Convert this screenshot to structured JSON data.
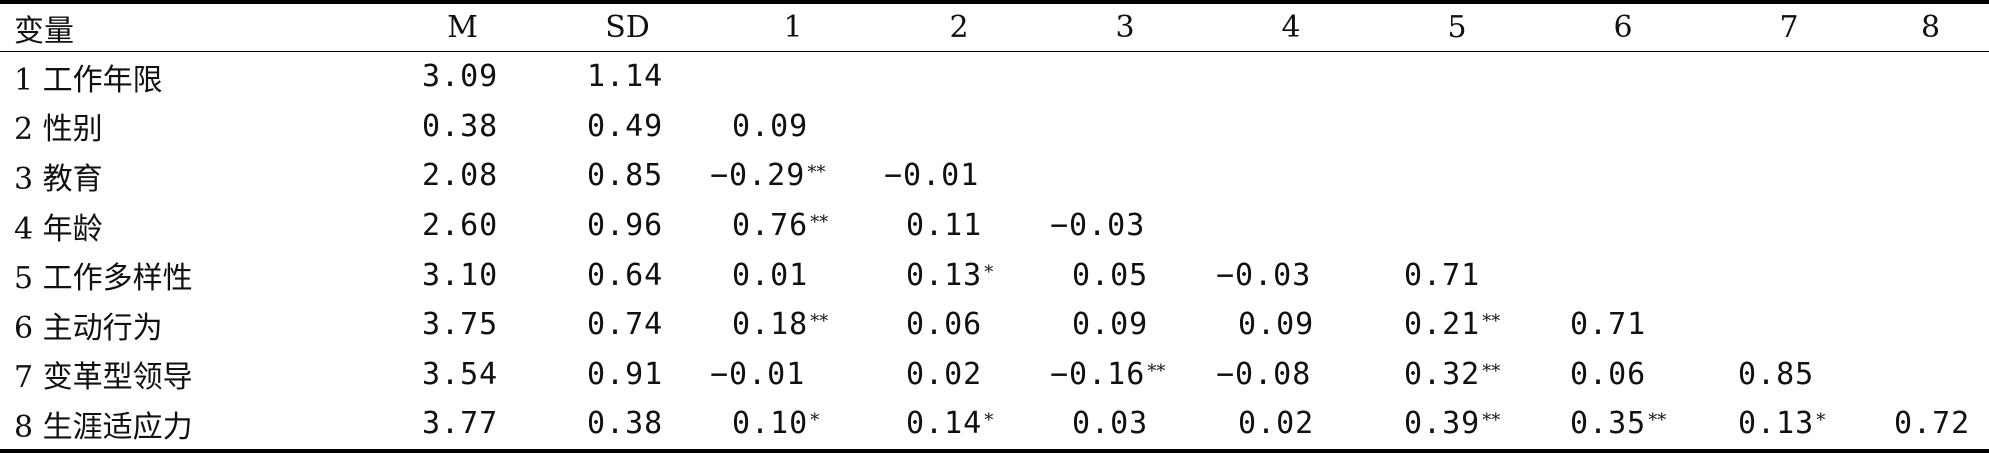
{
  "table": {
    "headers": [
      "变量",
      "M",
      "SD",
      "1",
      "2",
      "3",
      "4",
      "5",
      "6",
      "7",
      "8"
    ],
    "rows": [
      {
        "label": "1 工作年限",
        "m": "3.09",
        "sd": "1.14",
        "cells": []
      },
      {
        "label": "2 性别",
        "m": "0.38",
        "sd": "0.49",
        "cells": [
          {
            "v": "0.09",
            "s": ""
          }
        ]
      },
      {
        "label": "3 教育",
        "m": "2.08",
        "sd": "0.85",
        "cells": [
          {
            "v": "−0.29",
            "s": "**"
          },
          {
            "v": "−0.01",
            "s": ""
          }
        ]
      },
      {
        "label": "4 年龄",
        "m": "2.60",
        "sd": "0.96",
        "cells": [
          {
            "v": "0.76",
            "s": "**"
          },
          {
            "v": "0.11",
            "s": ""
          },
          {
            "v": "−0.03",
            "s": ""
          }
        ]
      },
      {
        "label": "5 工作多样性",
        "m": "3.10",
        "sd": "0.64",
        "cells": [
          {
            "v": "0.01",
            "s": ""
          },
          {
            "v": "0.13",
            "s": "*"
          },
          {
            "v": "0.05",
            "s": ""
          },
          {
            "v": "−0.03",
            "s": ""
          },
          {
            "v": "0.71",
            "s": ""
          }
        ]
      },
      {
        "label": "6 主动行为",
        "m": "3.75",
        "sd": "0.74",
        "cells": [
          {
            "v": "0.18",
            "s": "**"
          },
          {
            "v": "0.06",
            "s": ""
          },
          {
            "v": "0.09",
            "s": ""
          },
          {
            "v": "0.09",
            "s": ""
          },
          {
            "v": "0.21",
            "s": "**"
          },
          {
            "v": "0.71",
            "s": ""
          }
        ]
      },
      {
        "label": "7 变革型领导",
        "m": "3.54",
        "sd": "0.91",
        "cells": [
          {
            "v": "−0.01",
            "s": ""
          },
          {
            "v": "0.02",
            "s": ""
          },
          {
            "v": "−0.16",
            "s": "**"
          },
          {
            "v": "−0.08",
            "s": ""
          },
          {
            "v": "0.32",
            "s": "**"
          },
          {
            "v": "0.06",
            "s": ""
          },
          {
            "v": "0.85",
            "s": ""
          }
        ]
      },
      {
        "label": "8 生涯适应力",
        "m": "3.77",
        "sd": "0.38",
        "cells": [
          {
            "v": "0.10",
            "s": "*"
          },
          {
            "v": "0.14",
            "s": "*"
          },
          {
            "v": "0.03",
            "s": ""
          },
          {
            "v": "0.02",
            "s": ""
          },
          {
            "v": "0.39",
            "s": "**"
          },
          {
            "v": "0.35",
            "s": "**"
          },
          {
            "v": "0.13",
            "s": "*"
          },
          {
            "v": "0.72",
            "s": ""
          }
        ]
      }
    ]
  }
}
